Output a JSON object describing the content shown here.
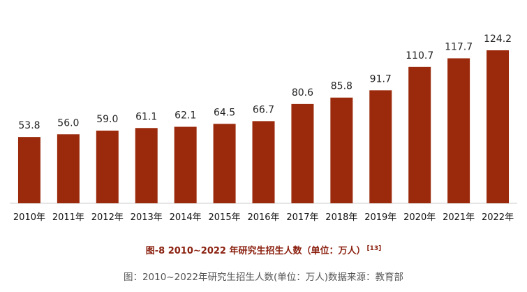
{
  "chart_data": {
    "type": "bar",
    "categories": [
      "2010年",
      "2011年",
      "2012年",
      "2013年",
      "2014年",
      "2015年",
      "2016年",
      "2017年",
      "2018年",
      "2019年",
      "2020年",
      "2021年",
      "2022年"
    ],
    "values": [
      53.8,
      56.0,
      59.0,
      61.1,
      62.1,
      64.5,
      66.7,
      80.6,
      85.8,
      91.7,
      110.7,
      117.7,
      124.2
    ],
    "value_labels": [
      "53.8",
      "56.0",
      "59.0",
      "61.1",
      "62.1",
      "64.5",
      "66.7",
      "80.6",
      "85.8",
      "91.7",
      "110.7",
      "117.7",
      "124.2"
    ],
    "title": "图-8 2010~2022 年研究生招生人数（单位：万人）",
    "title_ref": "[13]",
    "xlabel": "",
    "ylabel": "",
    "ylim": [
      0,
      130
    ],
    "grid": false,
    "legend": "none",
    "colors": {
      "bar": "#9b2a0c",
      "title": "#8b2110",
      "caption": "#555555",
      "axis": "#cccccc"
    }
  },
  "caption": "图：2010~2022年研究生招生人数(单位：万人)数据来源：教育部"
}
